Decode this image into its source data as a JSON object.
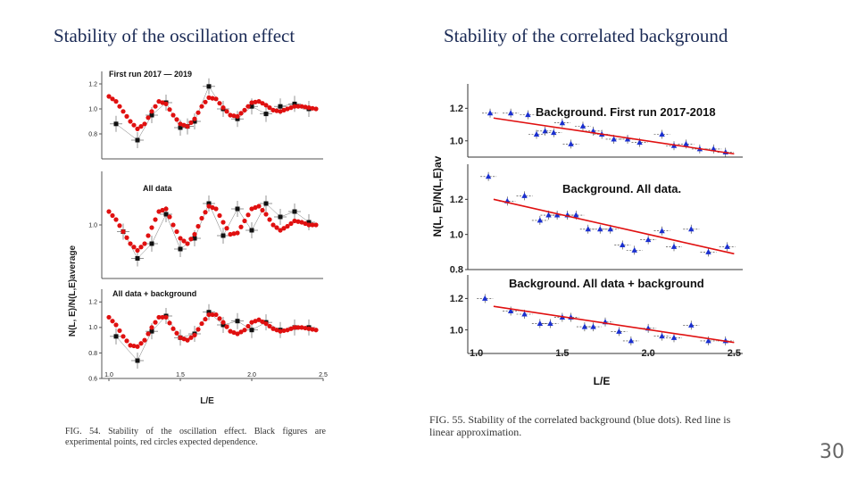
{
  "slide": {
    "title_left": "Stability of the oscillation effect",
    "title_right": "Stability of the correlated background",
    "page_number": "30"
  },
  "left_figure": {
    "caption": "FIG. 54. Stability of the oscillation effect. Black figures are experimental points, red circles expected dependence.",
    "ylabel": "N(L, E)/N(L,E)average",
    "xlabel": "L/E",
    "colors": {
      "experimental": "#111111",
      "expected": "#e01010"
    }
  },
  "right_figure": {
    "caption": "FIG. 55. Stability of the correlated background (blue dots). Red line is linear approximation.",
    "ylabel": "N(L, E)/N(L,E)av",
    "xlabel": "L/E",
    "colors": {
      "points": "#1a2fd0",
      "fit": "#e01010"
    }
  },
  "chart_data": [
    {
      "type": "scatter",
      "panel_label": "First run 2017 — 2019",
      "xlim": [
        0.95,
        2.5
      ],
      "ylim": [
        0.6,
        1.3
      ],
      "x_ticks": [
        "1.0",
        "1.5",
        "2.0",
        "2.5"
      ],
      "y_ticks": [
        "1.2",
        "1.0",
        "0.8"
      ],
      "series": [
        {
          "role": "experimental",
          "x": [
            1.05,
            1.2,
            1.3,
            1.4,
            1.5,
            1.55,
            1.6,
            1.7,
            1.8,
            1.9,
            2.0,
            2.1,
            2.2,
            2.3,
            2.4
          ],
          "y": [
            0.88,
            0.75,
            0.95,
            1.05,
            0.85,
            0.86,
            0.9,
            1.18,
            1.0,
            0.92,
            1.02,
            0.96,
            1.02,
            1.04,
            1.0
          ]
        },
        {
          "role": "expected",
          "x": [
            1.0,
            1.05,
            1.1,
            1.15,
            1.2,
            1.25,
            1.3,
            1.35,
            1.4,
            1.45,
            1.5,
            1.55,
            1.6,
            1.65,
            1.7,
            1.75,
            1.8,
            1.85,
            1.9,
            1.95,
            2.0,
            2.05,
            2.1,
            2.15,
            2.2,
            2.25,
            2.3,
            2.35,
            2.4,
            2.45
          ],
          "y": [
            1.1,
            1.06,
            0.98,
            0.9,
            0.84,
            0.88,
            0.98,
            1.06,
            1.04,
            0.95,
            0.88,
            0.86,
            0.92,
            1.02,
            1.09,
            1.08,
            1.01,
            0.95,
            0.94,
            0.99,
            1.05,
            1.06,
            1.03,
            0.99,
            0.98,
            1.0,
            1.02,
            1.02,
            1.01,
            1.0
          ]
        }
      ]
    },
    {
      "type": "scatter",
      "panel_label": "All data",
      "xlim": [
        0.95,
        2.5
      ],
      "ylim": [
        0.6,
        1.4
      ],
      "x_ticks": [
        "1.0",
        "1.5",
        "2.0",
        "2.5"
      ],
      "y_ticks": [
        "1.0"
      ],
      "series": [
        {
          "role": "experimental",
          "x": [
            1.1,
            1.2,
            1.3,
            1.4,
            1.5,
            1.6,
            1.7,
            1.8,
            1.9,
            2.0,
            2.1,
            2.2,
            2.3,
            2.4
          ],
          "y": [
            0.95,
            0.75,
            0.86,
            1.08,
            0.82,
            0.9,
            1.16,
            0.92,
            1.12,
            0.96,
            1.16,
            1.06,
            1.1,
            1.02
          ]
        },
        {
          "role": "expected",
          "x": [
            1.0,
            1.05,
            1.1,
            1.15,
            1.2,
            1.25,
            1.3,
            1.35,
            1.4,
            1.45,
            1.5,
            1.55,
            1.6,
            1.65,
            1.7,
            1.75,
            1.8,
            1.85,
            1.9,
            1.95,
            2.0,
            2.05,
            2.1,
            2.15,
            2.2,
            2.25,
            2.3,
            2.35,
            2.4,
            2.45
          ],
          "y": [
            1.1,
            1.04,
            0.95,
            0.86,
            0.81,
            0.86,
            0.98,
            1.1,
            1.12,
            1.0,
            0.9,
            0.86,
            0.93,
            1.05,
            1.14,
            1.12,
            1.02,
            0.93,
            0.94,
            1.03,
            1.12,
            1.14,
            1.08,
            1.0,
            0.96,
            0.99,
            1.03,
            1.02,
            1.0,
            1.0
          ]
        }
      ]
    },
    {
      "type": "scatter",
      "panel_label": "All data + background",
      "xlim": [
        0.95,
        2.5
      ],
      "ylim": [
        0.6,
        1.3
      ],
      "x_ticks": [
        "1.0",
        "1.5",
        "2.0",
        "2.5"
      ],
      "y_ticks": [
        "1.2",
        "1.0",
        "0.8",
        "0.6"
      ],
      "series": [
        {
          "role": "experimental",
          "x": [
            1.05,
            1.2,
            1.3,
            1.4,
            1.5,
            1.6,
            1.7,
            1.8,
            1.9,
            2.0,
            2.1,
            2.2,
            2.3,
            2.4
          ],
          "y": [
            0.93,
            0.74,
            0.97,
            1.09,
            0.92,
            0.95,
            1.12,
            1.02,
            1.05,
            0.98,
            1.04,
            0.98,
            1.0,
            1.0
          ]
        },
        {
          "role": "expected",
          "x": [
            1.0,
            1.05,
            1.1,
            1.15,
            1.2,
            1.25,
            1.3,
            1.35,
            1.4,
            1.45,
            1.5,
            1.55,
            1.6,
            1.65,
            1.7,
            1.75,
            1.8,
            1.85,
            1.9,
            1.95,
            2.0,
            2.05,
            2.1,
            2.15,
            2.2,
            2.25,
            2.3,
            2.35,
            2.4,
            2.45
          ],
          "y": [
            1.08,
            1.02,
            0.93,
            0.86,
            0.85,
            0.9,
            1.0,
            1.08,
            1.08,
            0.99,
            0.92,
            0.9,
            0.94,
            1.03,
            1.1,
            1.1,
            1.04,
            0.97,
            0.95,
            0.98,
            1.04,
            1.06,
            1.03,
            0.99,
            0.97,
            0.98,
            1.0,
            1.0,
            0.99,
            0.98
          ]
        }
      ]
    },
    {
      "type": "scatter",
      "panel_label": "Background. First run 2017-2018",
      "xlim": [
        0.95,
        2.55
      ],
      "ylim": [
        0.9,
        1.35
      ],
      "x_ticks": [
        "1.0",
        "1.5",
        "2.0",
        "2.5"
      ],
      "y_ticks": [
        "1.2",
        "1.0"
      ],
      "series": [
        {
          "role": "points",
          "x": [
            1.08,
            1.2,
            1.3,
            1.35,
            1.4,
            1.45,
            1.5,
            1.55,
            1.62,
            1.68,
            1.73,
            1.8,
            1.88,
            1.95,
            2.08,
            2.15,
            2.22,
            2.3,
            2.38,
            2.45
          ],
          "y": [
            1.17,
            1.17,
            1.16,
            1.04,
            1.06,
            1.05,
            1.11,
            0.98,
            1.09,
            1.06,
            1.04,
            1.01,
            1.01,
            0.99,
            1.04,
            0.97,
            0.98,
            0.95,
            0.95,
            0.93
          ]
        },
        {
          "role": "linear_fit",
          "x": [
            1.1,
            2.5
          ],
          "y": [
            1.14,
            0.92
          ]
        }
      ]
    },
    {
      "type": "scatter",
      "panel_label": "Background. All data.",
      "xlim": [
        0.95,
        2.55
      ],
      "ylim": [
        0.8,
        1.4
      ],
      "x_ticks": [
        "1.0",
        "1.5",
        "2.0",
        "2.5"
      ],
      "y_ticks": [
        "1.2",
        "1.0",
        "0.8"
      ],
      "series": [
        {
          "role": "points",
          "x": [
            1.07,
            1.18,
            1.28,
            1.37,
            1.42,
            1.47,
            1.53,
            1.58,
            1.65,
            1.72,
            1.78,
            1.85,
            1.92,
            2.0,
            2.08,
            2.15,
            2.25,
            2.35,
            2.46
          ],
          "y": [
            1.33,
            1.19,
            1.22,
            1.08,
            1.11,
            1.11,
            1.11,
            1.11,
            1.03,
            1.03,
            1.03,
            0.94,
            0.91,
            0.97,
            1.02,
            0.93,
            1.03,
            0.9,
            0.93
          ]
        },
        {
          "role": "linear_fit",
          "x": [
            1.1,
            2.5
          ],
          "y": [
            1.2,
            0.89
          ]
        }
      ]
    },
    {
      "type": "scatter",
      "panel_label": "Background. All data + background",
      "xlim": [
        0.95,
        2.55
      ],
      "ylim": [
        0.85,
        1.35
      ],
      "x_ticks": [
        "1.0",
        "1.5",
        "2.0",
        "2.5"
      ],
      "y_ticks": [
        "1.2",
        "1.0"
      ],
      "series": [
        {
          "role": "points",
          "x": [
            1.05,
            1.2,
            1.28,
            1.37,
            1.43,
            1.5,
            1.55,
            1.63,
            1.68,
            1.75,
            1.83,
            1.9,
            2.0,
            2.08,
            2.15,
            2.25,
            2.35,
            2.45
          ],
          "y": [
            1.2,
            1.12,
            1.1,
            1.04,
            1.04,
            1.08,
            1.08,
            1.02,
            1.02,
            1.05,
            0.99,
            0.93,
            1.01,
            0.96,
            0.95,
            1.03,
            0.93,
            0.93
          ]
        },
        {
          "role": "linear_fit",
          "x": [
            1.1,
            2.5
          ],
          "y": [
            1.15,
            0.92
          ]
        }
      ]
    }
  ]
}
